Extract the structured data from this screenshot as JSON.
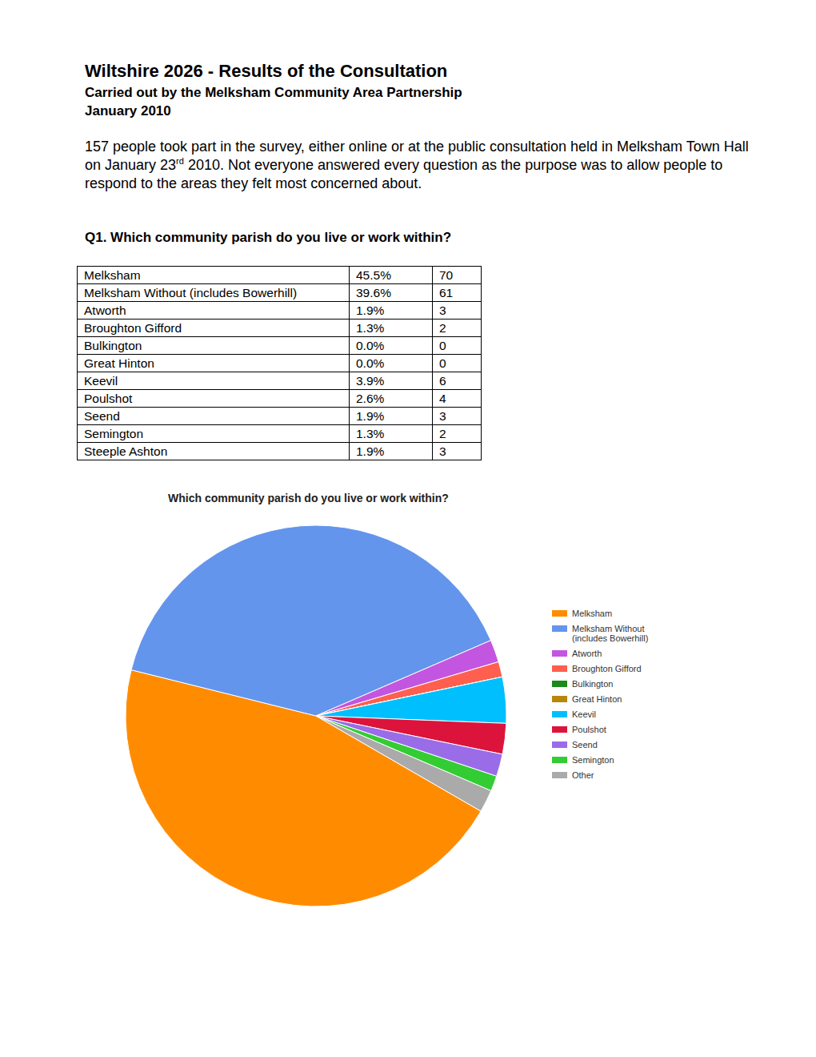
{
  "header": {
    "title": "Wiltshire 2026 - Results of the Consultation",
    "subtitle_lines": [
      "Carried out by the Melksham Community Area Partnership",
      "January 2010"
    ]
  },
  "intro": {
    "before_sup": "157 people took part in the survey, either online or at the public consultation held in Melksham Town Hall on January 23",
    "sup": "rd",
    "after_sup": " 2010. Not everyone answered every question as the purpose was to allow people to respond to the areas they felt most concerned about."
  },
  "question": "Q1. Which community parish do you live or work within?",
  "table": {
    "rows": [
      [
        "Melksham",
        "45.5%",
        70
      ],
      [
        "Melksham Without (includes Bowerhill)",
        "39.6%",
        61
      ],
      [
        "Atworth",
        "1.9%",
        3
      ],
      [
        "Broughton Gifford",
        "1.3%",
        2
      ],
      [
        "Bulkington",
        "0.0%",
        0
      ],
      [
        "Great Hinton",
        "0.0%",
        0
      ],
      [
        "Keevil",
        "3.9%",
        6
      ],
      [
        "Poulshot",
        "2.6%",
        4
      ],
      [
        "Seend",
        "1.9%",
        3
      ],
      [
        "Semington",
        "1.3%",
        2
      ],
      [
        "Steeple Ashton",
        "1.9%",
        3
      ]
    ]
  },
  "chart_data": {
    "type": "pie",
    "title": "Which community parish do you live or work within?",
    "categories": [
      "Melksham",
      "Melksham Without (includes Bowerhill)",
      "Atworth",
      "Broughton Gifford",
      "Bulkington",
      "Great Hinton",
      "Keevil",
      "Poulshot",
      "Seend",
      "Semington",
      "Other"
    ],
    "values": [
      45.5,
      39.6,
      1.9,
      1.3,
      0,
      0,
      3.9,
      2.6,
      1.9,
      1.3,
      1.9
    ],
    "colors": [
      "#ff8c00",
      "#6495ed",
      "#c356e0",
      "#ff5f4f",
      "#1a8a1a",
      "#b8860b",
      "#00bfff",
      "#dc143c",
      "#9a6ce8",
      "#33cc33",
      "#aaaaaa"
    ],
    "legend": "right"
  }
}
